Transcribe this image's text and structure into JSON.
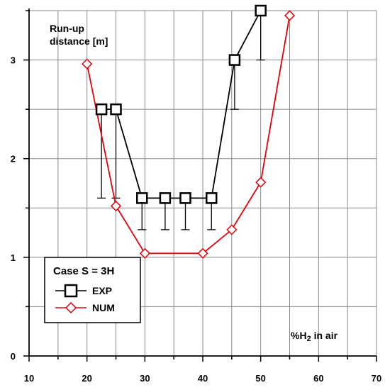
{
  "chart_data": {
    "type": "line",
    "xlabel_main": "%H",
    "xlabel_sub": "2",
    "xlabel_rest": " in air",
    "ylabel_line1": "Run-up",
    "ylabel_line2": "distance [m]",
    "xlim": [
      10,
      70
    ],
    "ylim": [
      0,
      3.5
    ],
    "x_ticks": [
      10,
      20,
      30,
      40,
      50,
      60,
      70
    ],
    "y_ticks": [
      0,
      1,
      2,
      3
    ],
    "grid": true,
    "legend": {
      "title": "Case S = 3H",
      "placement": "bottom-left"
    },
    "series": [
      {
        "name": "EXP",
        "color": "#000000",
        "marker": "square",
        "x": [
          22.5,
          25,
          29.5,
          33.5,
          37,
          41.5,
          45.5,
          50
        ],
        "y": [
          2.5,
          2.5,
          1.6,
          1.6,
          1.6,
          1.6,
          3.0,
          3.5
        ],
        "error_low": [
          1.6,
          1.6,
          1.28,
          1.28,
          1.28,
          1.28,
          2.5,
          3.0
        ]
      },
      {
        "name": "NUM",
        "color": "#e8000b",
        "marker": "diamond",
        "x": [
          20,
          25,
          30,
          40,
          45,
          50,
          55
        ],
        "y": [
          2.96,
          1.52,
          1.04,
          1.04,
          1.28,
          1.76,
          3.45
        ]
      }
    ]
  }
}
